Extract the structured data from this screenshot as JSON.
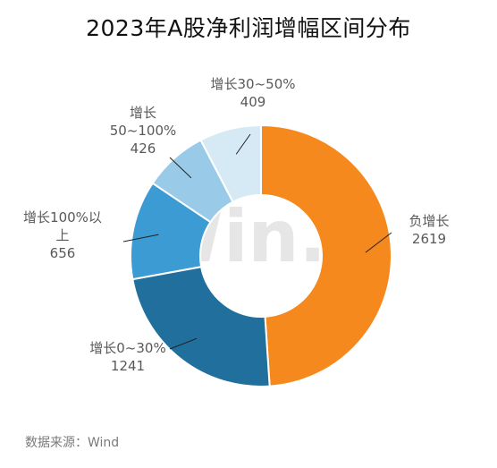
{
  "chart_data": {
    "type": "pie",
    "donut": true,
    "title": "2023年A股净利润增幅区间分布",
    "slices": [
      {
        "label_lines": [
          "负增长",
          "2619"
        ],
        "label": "负增长",
        "value": 2619,
        "color": "#f5891d"
      },
      {
        "label_lines": [
          "增长0~30%",
          "1241"
        ],
        "label": "增长0~30%",
        "value": 1241,
        "color": "#216f9c"
      },
      {
        "label_lines": [
          "增长100%以",
          "上",
          "656"
        ],
        "label": "增长100%以上",
        "value": 656,
        "color": "#3d9bd3"
      },
      {
        "label_lines": [
          "增长",
          "50~100%",
          "426"
        ],
        "label": "增长50~100%",
        "value": 426,
        "color": "#99cbe9"
      },
      {
        "label_lines": [
          "增长30~50%",
          "409"
        ],
        "label": "增长30~50%",
        "value": 409,
        "color": "#d6eaf6"
      }
    ],
    "start_angle": "12 o'clock",
    "direction": "clockwise"
  },
  "watermark": "Win.d",
  "source": "数据来源：Wind"
}
